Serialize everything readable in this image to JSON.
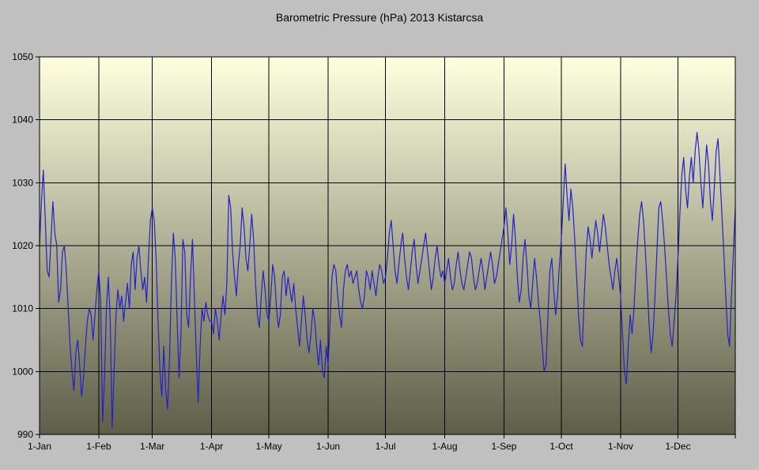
{
  "colors": {
    "page_bg": "#c0c0c0",
    "plot_gradient_top": "#ffffe0",
    "plot_gradient_bottom": "#5e5e49",
    "grid": "#000000",
    "axis": "#000000",
    "series_line": "#2222cc",
    "title_text": "#000000"
  },
  "chart_data": {
    "type": "line",
    "title": "Barometric Pressure (hPa) 2013 Kistarcsa",
    "xlabel": "",
    "ylabel": "",
    "x_unit": "day of year 2013 (daily values)",
    "ylim": [
      990,
      1050
    ],
    "yticks": [
      990,
      1000,
      1010,
      1020,
      1030,
      1040,
      1050
    ],
    "xticks": [
      {
        "label": "1-Jan",
        "day": 0
      },
      {
        "label": "1-Feb",
        "day": 31
      },
      {
        "label": "1-Mar",
        "day": 59
      },
      {
        "label": "1-Apr",
        "day": 90
      },
      {
        "label": "1-May",
        "day": 120
      },
      {
        "label": "1-Jun",
        "day": 151
      },
      {
        "label": "1-Jul",
        "day": 181
      },
      {
        "label": "1-Aug",
        "day": 212
      },
      {
        "label": "1-Sep",
        "day": 243
      },
      {
        "label": "1-Oct",
        "day": 273
      },
      {
        "label": "1-Nov",
        "day": 304
      },
      {
        "label": "1-Dec",
        "day": 334
      }
    ],
    "grid": "both",
    "legend": "none",
    "series_name": "Barometric pressure (hPa)",
    "values": [
      1020,
      1027,
      1032,
      1024,
      1016,
      1015,
      1021,
      1027,
      1022,
      1020,
      1011,
      1013,
      1019,
      1020,
      1016,
      1010,
      1004,
      1000,
      997,
      1003,
      1005,
      1001,
      996,
      999,
      1004,
      1008,
      1010,
      1009,
      1005,
      1009,
      1013,
      1016,
      1011,
      992,
      999,
      1010,
      1015,
      1008,
      991,
      1000,
      1009,
      1013,
      1010,
      1012,
      1008,
      1011,
      1014,
      1010,
      1017,
      1019,
      1013,
      1018,
      1020,
      1016,
      1013,
      1015,
      1011,
      1018,
      1024,
      1026,
      1024,
      1018,
      1008,
      1000,
      996,
      1004,
      997,
      994,
      1002,
      1014,
      1022,
      1018,
      1008,
      999,
      1006,
      1021,
      1019,
      1009,
      1007,
      1015,
      1021,
      1012,
      1003,
      995,
      1004,
      1010,
      1008,
      1011,
      1009,
      1008,
      1008,
      1006,
      1010,
      1008,
      1005,
      1009,
      1012,
      1009,
      1014,
      1028,
      1026,
      1019,
      1015,
      1012,
      1017,
      1020,
      1026,
      1023,
      1018,
      1016,
      1020,
      1025,
      1021,
      1014,
      1009,
      1007,
      1012,
      1016,
      1013,
      1009,
      1008,
      1012,
      1017,
      1015,
      1010,
      1007,
      1009,
      1015,
      1016,
      1012,
      1015,
      1013,
      1011,
      1014,
      1010,
      1007,
      1004,
      1008,
      1012,
      1009,
      1005,
      1003,
      1006,
      1010,
      1008,
      1004,
      1001,
      1005,
      1000,
      999,
      1004,
      1001,
      1008,
      1015,
      1017,
      1016,
      1012,
      1009,
      1007,
      1013,
      1016,
      1017,
      1015,
      1016,
      1014,
      1015,
      1016,
      1013,
      1011,
      1010,
      1012,
      1016,
      1015,
      1013,
      1016,
      1014,
      1012,
      1015,
      1017,
      1016,
      1014,
      1015,
      1018,
      1022,
      1024,
      1020,
      1016,
      1014,
      1017,
      1020,
      1022,
      1018,
      1015,
      1013,
      1016,
      1019,
      1021,
      1017,
      1014,
      1016,
      1018,
      1020,
      1022,
      1019,
      1016,
      1013,
      1015,
      1018,
      1020,
      1017,
      1015,
      1016,
      1014,
      1016,
      1018,
      1015,
      1013,
      1014,
      1017,
      1019,
      1016,
      1014,
      1013,
      1015,
      1017,
      1019,
      1018,
      1015,
      1013,
      1014,
      1016,
      1018,
      1016,
      1013,
      1015,
      1017,
      1019,
      1017,
      1014,
      1015,
      1017,
      1019,
      1021,
      1023,
      1026,
      1022,
      1017,
      1020,
      1025,
      1021,
      1015,
      1011,
      1013,
      1018,
      1021,
      1017,
      1012,
      1010,
      1014,
      1018,
      1015,
      1011,
      1008,
      1004,
      1000,
      1001,
      1009,
      1016,
      1018,
      1013,
      1009,
      1012,
      1017,
      1021,
      1027,
      1033,
      1028,
      1024,
      1029,
      1026,
      1021,
      1015,
      1009,
      1005,
      1004,
      1012,
      1019,
      1023,
      1021,
      1018,
      1021,
      1024,
      1022,
      1019,
      1022,
      1025,
      1023,
      1020,
      1017,
      1015,
      1013,
      1016,
      1018,
      1015,
      1012,
      1006,
      1000,
      998,
      1004,
      1009,
      1006,
      1010,
      1016,
      1021,
      1025,
      1027,
      1024,
      1019,
      1013,
      1007,
      1003,
      1006,
      1012,
      1019,
      1026,
      1027,
      1024,
      1020,
      1015,
      1010,
      1006,
      1004,
      1008,
      1012,
      1018,
      1025,
      1031,
      1034,
      1029,
      1026,
      1031,
      1034,
      1030,
      1035,
      1038,
      1035,
      1030,
      1026,
      1031,
      1036,
      1033,
      1027,
      1024,
      1029,
      1035,
      1037,
      1031,
      1025,
      1019,
      1012,
      1006,
      1004,
      1012,
      1019,
      1026
    ]
  }
}
